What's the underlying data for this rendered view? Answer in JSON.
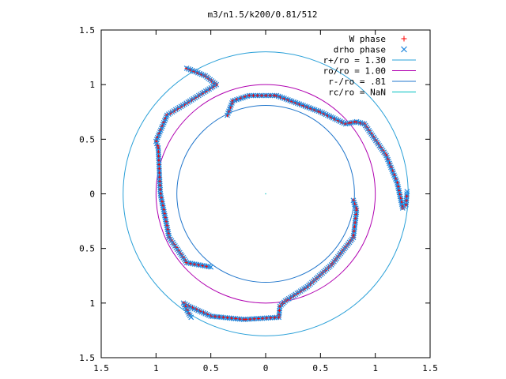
{
  "chart_data": {
    "type": "scatter",
    "title": "m3/n1.5/k200/0.81/512",
    "xlim": [
      -1.5,
      1.5
    ],
    "ylim": [
      -1.5,
      1.5
    ],
    "grid": false,
    "legend_position": "top-right",
    "xticks": [
      {
        "value": -1.5,
        "label": "1.5"
      },
      {
        "value": -1.0,
        "label": "1"
      },
      {
        "value": -0.5,
        "label": "0.5"
      },
      {
        "value": 0.0,
        "label": "0"
      },
      {
        "value": 0.5,
        "label": "0.5"
      },
      {
        "value": 1.0,
        "label": "1"
      },
      {
        "value": 1.5,
        "label": "1.5"
      }
    ],
    "yticks": [
      {
        "value": 1.5,
        "label": "1.5"
      },
      {
        "value": 1.0,
        "label": "1"
      },
      {
        "value": 0.5,
        "label": "0.5"
      },
      {
        "value": 0.0,
        "label": "0"
      },
      {
        "value": -0.5,
        "label": "0.5"
      },
      {
        "value": -1.0,
        "label": "1"
      },
      {
        "value": -1.5,
        "label": "1.5"
      }
    ],
    "circles": [
      {
        "name": "r+/ro = 1.30",
        "radius": 1.3,
        "color": "#2aa0d8"
      },
      {
        "name": "ro/ro = 1.00",
        "radius": 1.0,
        "color": "#b000b0"
      },
      {
        "name": "r-/ro = .81",
        "radius": 0.81,
        "color": "#2277cc"
      },
      {
        "name": "rc/ro = NaN",
        "radius": null,
        "color": "#00c0c0"
      }
    ],
    "series": [
      {
        "name": "W phase",
        "marker": "plus",
        "color": "#ff0000"
      },
      {
        "name": "drho phase",
        "marker": "x",
        "color": "#2288dd"
      }
    ],
    "arms": [
      [
        [
          -0.72,
          1.15
        ],
        [
          -0.55,
          1.08
        ],
        [
          -0.45,
          1.0
        ],
        [
          -0.9,
          0.72
        ],
        [
          -1.0,
          0.48
        ],
        [
          -0.98,
          0.42
        ],
        [
          -0.96,
          0.0
        ],
        [
          -0.88,
          -0.4
        ],
        [
          -0.72,
          -0.63
        ],
        [
          -0.5,
          -0.67
        ]
      ],
      [
        [
          -0.35,
          0.72
        ],
        [
          -0.3,
          0.85
        ],
        [
          -0.15,
          0.9
        ],
        [
          0.1,
          0.9
        ],
        [
          0.5,
          0.75
        ],
        [
          0.73,
          0.64
        ],
        [
          0.78,
          0.65
        ],
        [
          0.83,
          0.66
        ],
        [
          0.9,
          0.64
        ],
        [
          1.1,
          0.35
        ],
        [
          1.2,
          0.1
        ],
        [
          1.25,
          -0.13
        ],
        [
          1.28,
          -0.1
        ],
        [
          1.29,
          0.02
        ]
      ],
      [
        [
          0.8,
          -0.06
        ],
        [
          0.83,
          -0.15
        ],
        [
          0.8,
          -0.4
        ],
        [
          0.6,
          -0.65
        ],
        [
          0.38,
          -0.85
        ],
        [
          0.18,
          -0.98
        ],
        [
          0.13,
          -1.03
        ],
        [
          0.12,
          -1.13
        ],
        [
          -0.2,
          -1.15
        ],
        [
          -0.5,
          -1.12
        ],
        [
          -0.7,
          -1.03
        ],
        [
          -0.75,
          -1.0
        ],
        [
          -0.7,
          -1.1
        ],
        [
          -0.68,
          -1.13
        ]
      ]
    ]
  }
}
